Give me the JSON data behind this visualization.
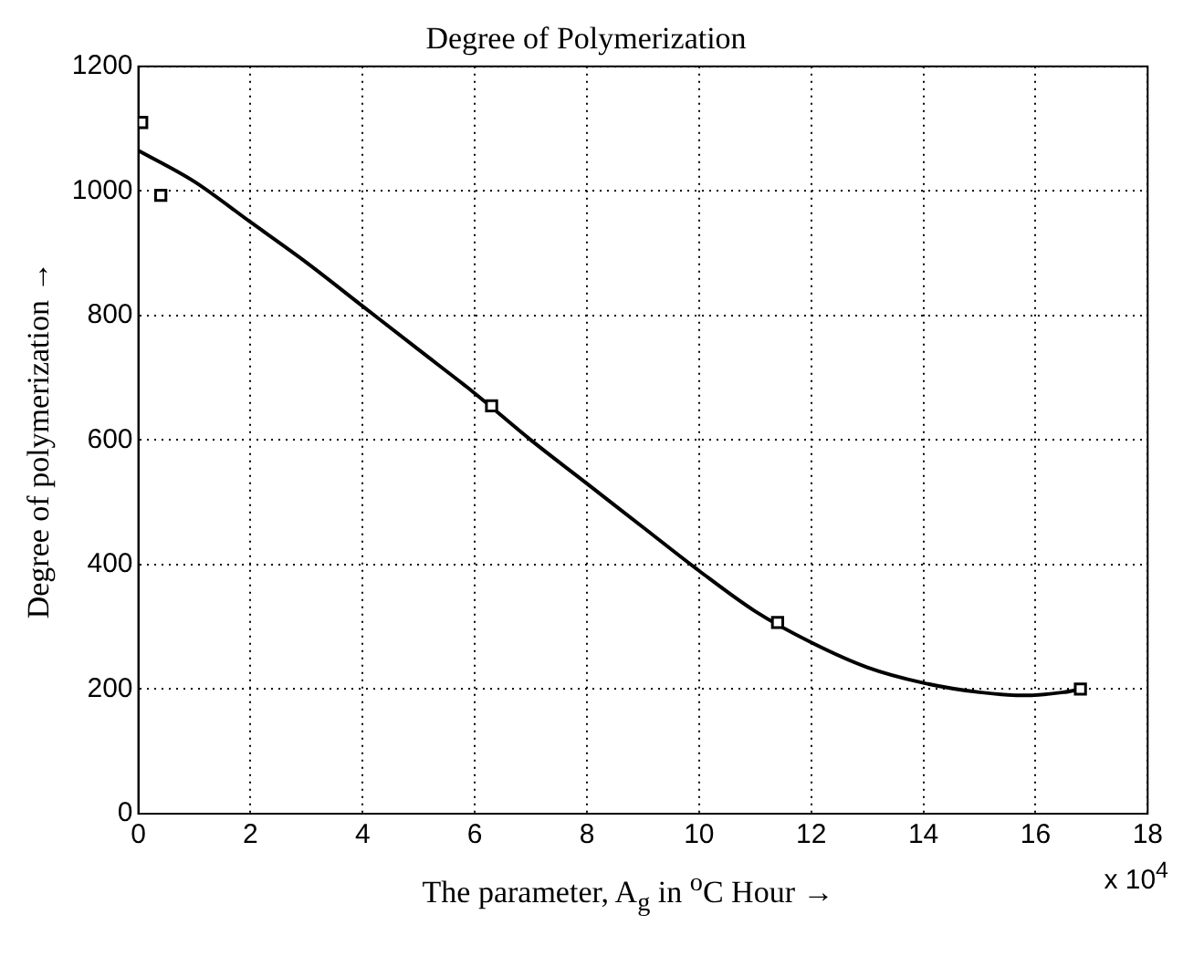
{
  "chart_data": {
    "type": "scatter",
    "title": "Degree of Polymerization",
    "xlabel": "The parameter, A$_{g}$ in $^{o}$C Hour →",
    "ylabel": "Degree of polymerization →",
    "annotations": [
      "x 10$^{4}$"
    ],
    "series": [
      {
        "type": "scatter",
        "color": "#000000",
        "marker": "square",
        "x": [
          0.06,
          0.4,
          6.3,
          11.4,
          16.8
        ],
        "values": [
          1110,
          993,
          655,
          307,
          200
        ]
      },
      {
        "type": "line",
        "color": "#000000",
        "marker": "none",
        "line_style": "solid",
        "x": [
          0,
          1,
          2,
          3,
          4,
          5,
          6,
          7,
          8,
          9,
          10,
          11,
          12,
          13,
          14,
          15,
          15.8,
          16.5,
          16.8
        ],
        "values": [
          1065,
          1015,
          950,
          885,
          815,
          745,
          675,
          600,
          530,
          460,
          390,
          325,
          275,
          235,
          210,
          195,
          190,
          195,
          200
        ]
      }
    ],
    "xlim": [
      0,
      18
    ],
    "xticks": [
      0,
      2,
      4,
      6,
      8,
      10,
      12,
      14,
      16,
      18
    ],
    "ylim": [
      0,
      1200
    ],
    "yticks": [
      0,
      200,
      400,
      600,
      800,
      1000,
      1200
    ],
    "grid": true,
    "legend": false
  }
}
